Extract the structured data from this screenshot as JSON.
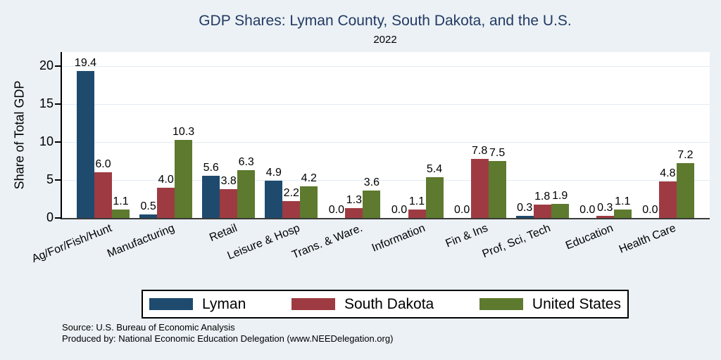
{
  "header": {
    "title": "GDP Shares: Lyman County, South Dakota, and the U.S.",
    "subtitle": "2022"
  },
  "chart_data": {
    "type": "bar",
    "title": "GDP Shares: Lyman County, South Dakota, and the U.S.",
    "subtitle": "2022",
    "xlabel": "",
    "ylabel": "Share of Total GDP",
    "ylim": [
      0,
      22
    ],
    "yticks": [
      0,
      5,
      10,
      15,
      20
    ],
    "grid": true,
    "legend_position": "bottom",
    "categories": [
      "Ag/For/Fish/Hunt",
      "Manufacturing",
      "Retail",
      "Leisure & Hosp",
      "Trans. & Ware.",
      "Information",
      "Fin & Ins",
      "Prof, Sci, Tech",
      "Education",
      "Health Care"
    ],
    "series": [
      {
        "name": "Lyman",
        "color": "#1e4a6e",
        "values": [
          19.4,
          0.5,
          5.6,
          4.9,
          0.0,
          0.0,
          0.0,
          0.3,
          0.0,
          0.0
        ]
      },
      {
        "name": "South Dakota",
        "color": "#9e3b42",
        "values": [
          6.0,
          4.0,
          3.8,
          2.2,
          1.3,
          1.1,
          7.8,
          1.8,
          0.3,
          4.8
        ]
      },
      {
        "name": "United States",
        "color": "#5d7a2e",
        "values": [
          1.1,
          10.3,
          6.3,
          4.2,
          3.6,
          5.4,
          7.5,
          1.9,
          1.1,
          7.2
        ]
      }
    ]
  },
  "footer": {
    "source": "Source: U.S. Bureau of Economic Analysis",
    "produced": "Produced by: National Economic Education Delegation (www.NEEDelegation.org)"
  },
  "colors": {
    "background": "#ebf1f5",
    "plot_background": "#ffffff",
    "gridline": "#e2ebf3",
    "title_text": "#233a63",
    "lyman": "#1e4a6e",
    "south_dakota": "#9e3b42",
    "united_states": "#5d7a2e"
  }
}
